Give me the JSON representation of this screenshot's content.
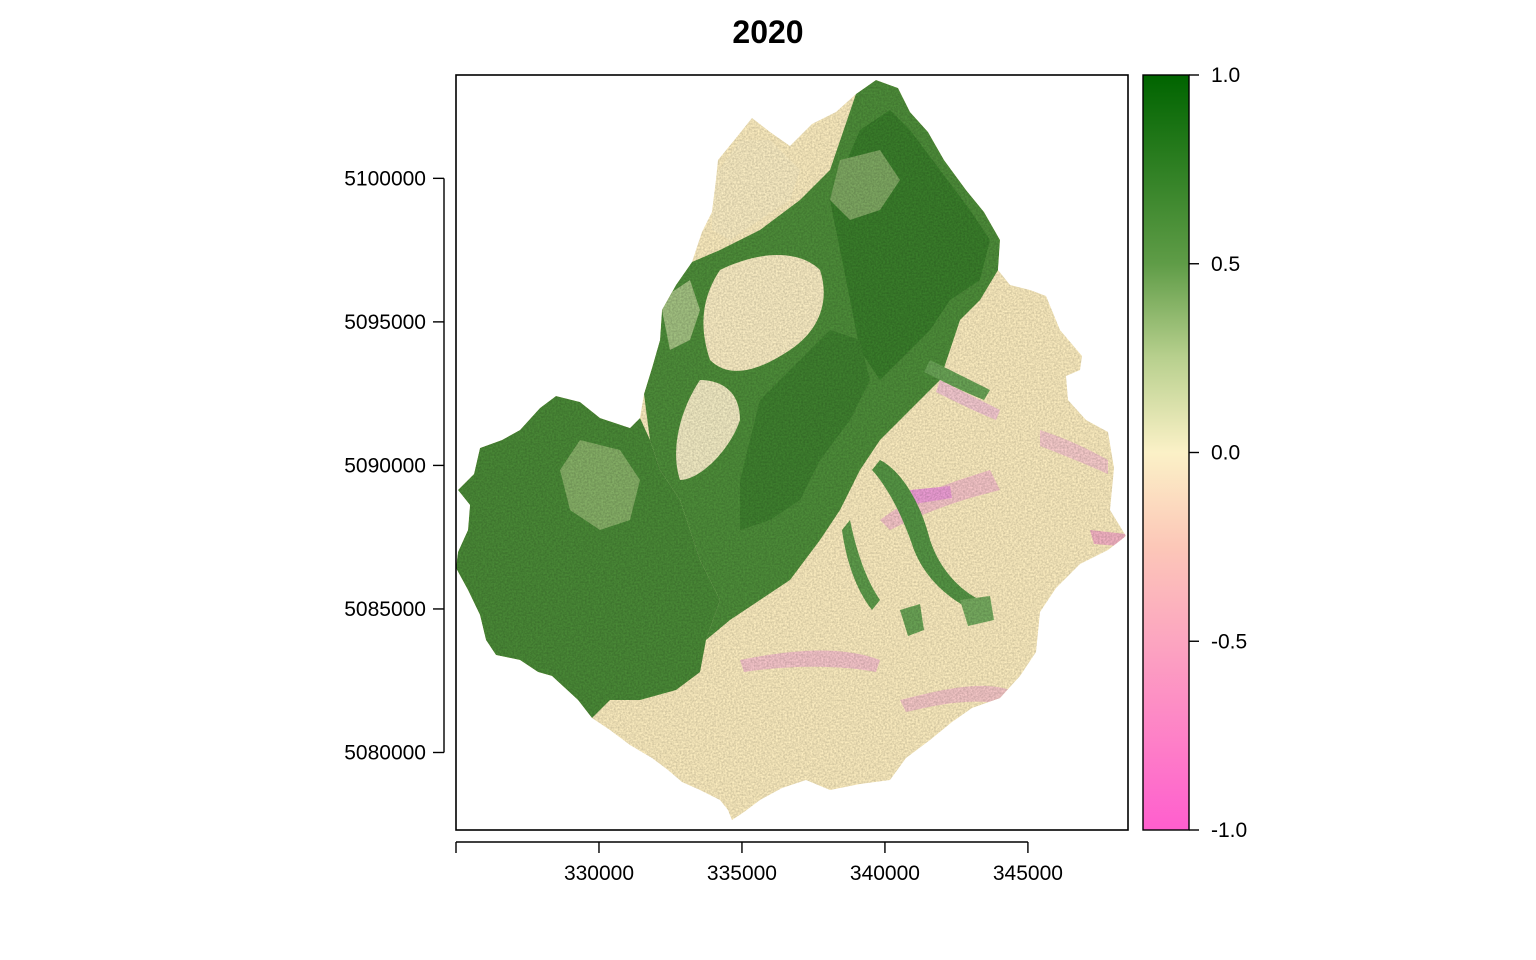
{
  "title": "2020",
  "chart_data": {
    "type": "heatmap",
    "title": "2020",
    "xlabel": "",
    "ylabel": "",
    "xlim": [
      325000,
      348500
    ],
    "ylim": [
      5077300,
      5103600
    ],
    "x_ticks": [
      330000,
      335000,
      340000,
      345000
    ],
    "x_tick_labels": [
      "330000",
      "335000",
      "340000",
      "345000"
    ],
    "y_ticks": [
      5080000,
      5085000,
      5090000,
      5095000,
      5100000
    ],
    "y_tick_labels": [
      "5080000",
      "5085000",
      "5090000",
      "5095000",
      "5100000"
    ],
    "legend": {
      "placement": "right",
      "range": [
        -1.0,
        1.0
      ],
      "ticks": [
        1.0,
        0.5,
        0.0,
        -0.5,
        -1.0
      ],
      "tick_labels": [
        "1.0",
        "0.5",
        "0.0",
        "-0.5",
        "-1.0"
      ],
      "colors": [
        {
          "value": 1.0,
          "color": "#006400"
        },
        {
          "value": 0.5,
          "color": "#5f9c47"
        },
        {
          "value": 0.25,
          "color": "#b8d08e"
        },
        {
          "value": 0.0,
          "color": "#fbf1c7"
        },
        {
          "value": -0.25,
          "color": "#fcc7b8"
        },
        {
          "value": -0.5,
          "color": "#fca5c0"
        },
        {
          "value": -1.0,
          "color": "#ff5ece"
        }
      ]
    },
    "grid": false
  },
  "colors": {
    "background": "#ffffff",
    "axis": "#000000",
    "green_dark": "#2f7a24",
    "green_mid": "#4f8f38",
    "green_light": "#8eb66a",
    "cream": "#fdeec0",
    "pink_light": "#f8c3c3",
    "pink": "#ef9ed2"
  }
}
